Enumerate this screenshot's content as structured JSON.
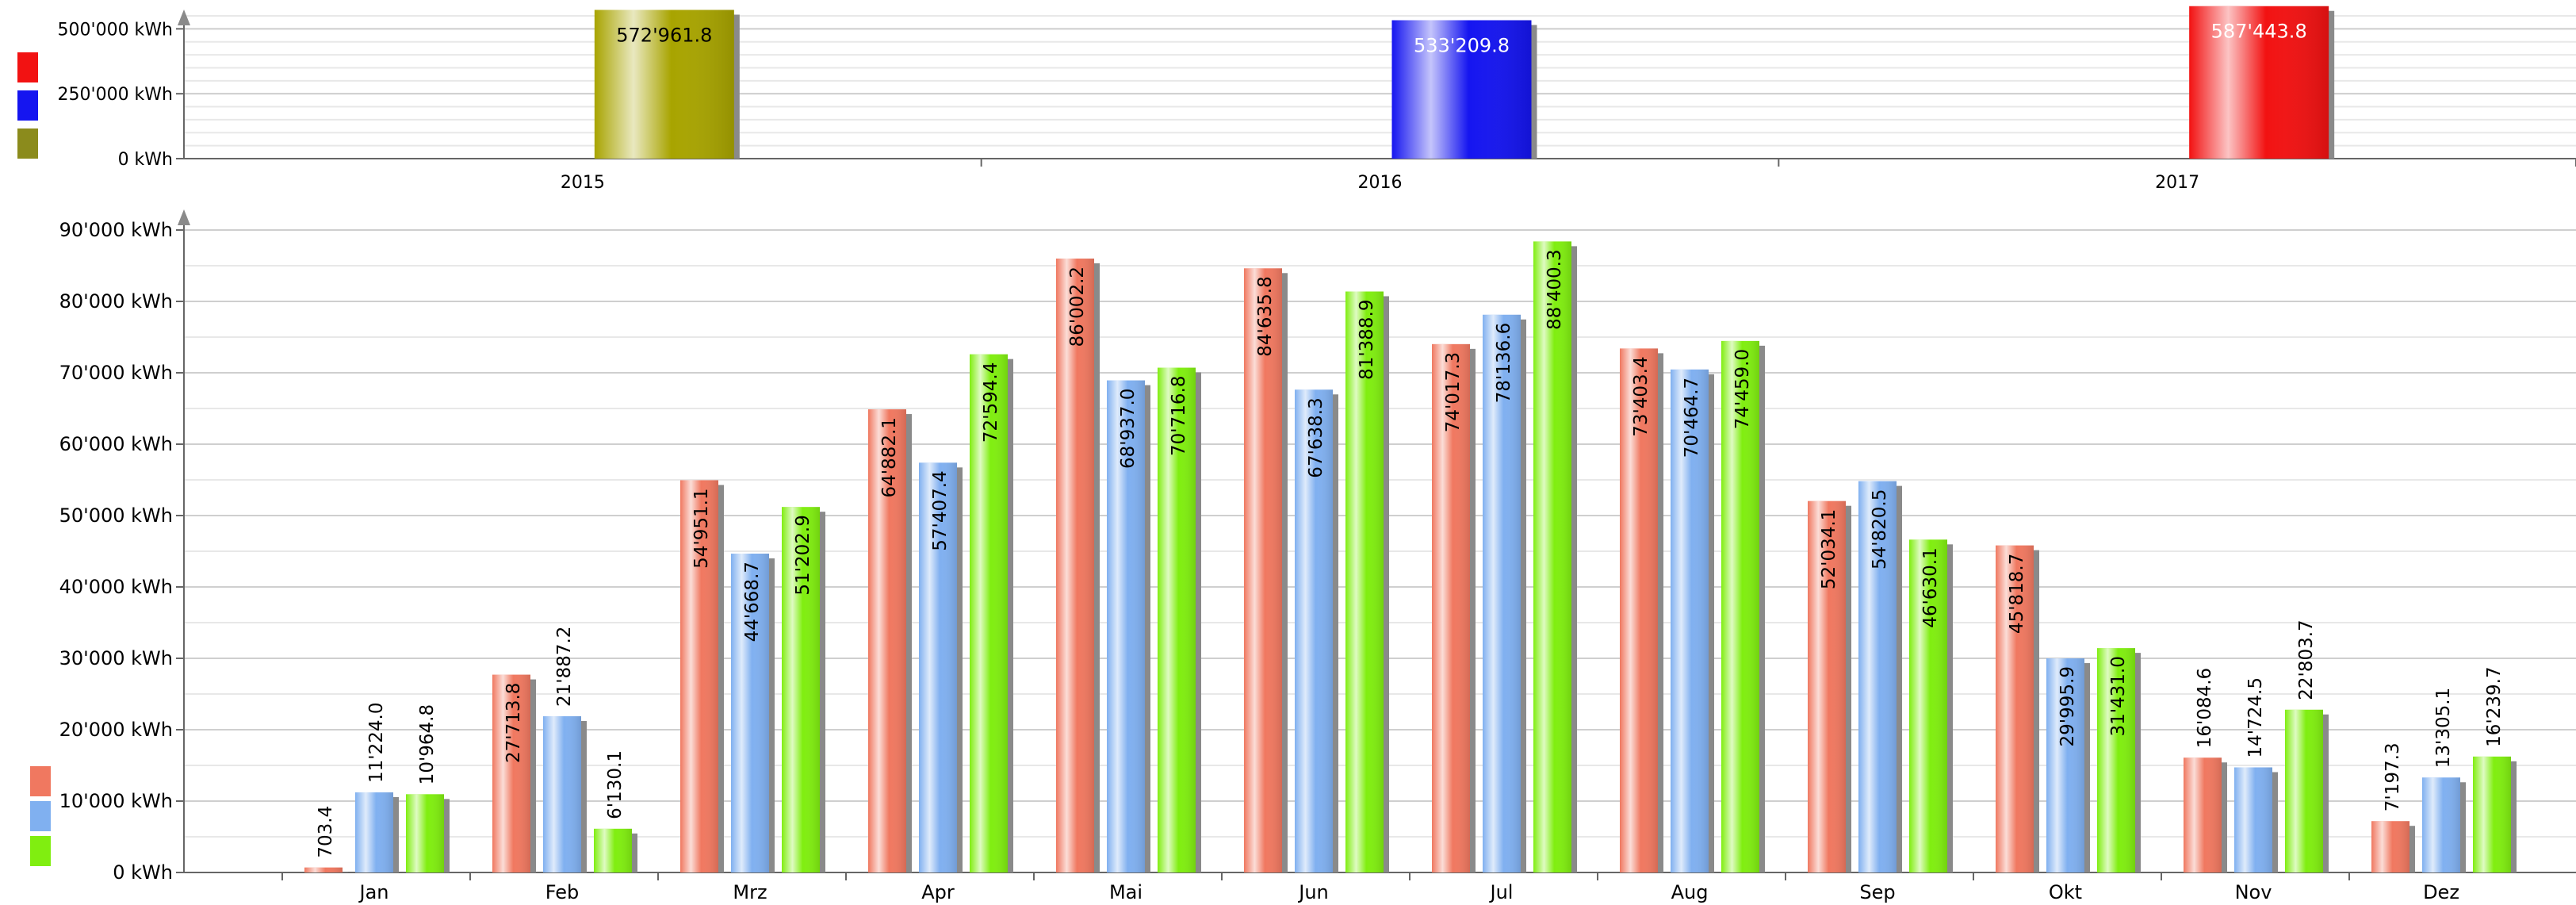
{
  "chart_data": [
    {
      "type": "bar",
      "categories": [
        "2015",
        "2016",
        "2017"
      ],
      "values": [
        572961.8,
        533209.8,
        587443.8
      ],
      "value_labels": [
        "572'961.8",
        "533'209.8",
        "587'443.8"
      ],
      "bar_colors": [
        "#a8a400",
        "#1515f0",
        "#f21212"
      ],
      "ylim": [
        0,
        550000
      ],
      "yticks": [
        0,
        250000,
        500000
      ],
      "ytick_labels": [
        "0 kWh",
        "250'000 kWh",
        "500'000 kWh"
      ],
      "legend_colors": [
        "#f21212",
        "#1515f0",
        "#8b8b1c"
      ],
      "legend_placement": "left",
      "grid": true
    },
    {
      "type": "bar",
      "categories": [
        "Jan",
        "Feb",
        "Mrz",
        "Apr",
        "Mai",
        "Jun",
        "Jul",
        "Aug",
        "Sep",
        "Okt",
        "Nov",
        "Dez"
      ],
      "series": [
        {
          "color": "#f07860",
          "values": [
            703.4,
            27713.8,
            54951.1,
            64882.1,
            86002.2,
            84635.8,
            74017.3,
            73403.4,
            52034.1,
            45818.7,
            16084.6,
            7197.3
          ],
          "labels": [
            "703.4",
            "27'713.8",
            "54'951.1",
            "64'882.1",
            "86'002.2",
            "84'635.8",
            "74'017.3",
            "73'403.4",
            "52'034.1",
            "45'818.7",
            "16'084.6",
            "7'197.3"
          ]
        },
        {
          "color": "#80b0f0",
          "values": [
            11224.0,
            21887.2,
            44668.7,
            57407.4,
            68937.0,
            67638.3,
            78136.6,
            70464.7,
            54820.5,
            29995.9,
            14724.5,
            13305.1
          ],
          "labels": [
            "11'224.0",
            "21'887.2",
            "44'668.7",
            "57'407.4",
            "68'937.0",
            "67'638.3",
            "78'136.6",
            "70'464.7",
            "54'820.5",
            "29'995.9",
            "14'724.5",
            "13'305.1"
          ]
        },
        {
          "color": "#80ee10",
          "values": [
            10964.8,
            6130.1,
            51202.9,
            72594.4,
            70716.8,
            81388.9,
            88400.3,
            74459.0,
            46630.1,
            31431.0,
            22803.7,
            16239.7
          ],
          "labels": [
            "10'964.8",
            "6'130.1",
            "51'202.9",
            "72'594.4",
            "70'716.8",
            "81'388.9",
            "88'400.3",
            "74'459.0",
            "46'630.1",
            "31'431.0",
            "22'803.7",
            "16'239.7"
          ]
        }
      ],
      "ylim": [
        0,
        92000
      ],
      "yticks": [
        0,
        10000,
        20000,
        30000,
        40000,
        50000,
        60000,
        70000,
        80000,
        90000
      ],
      "ytick_labels": [
        "0 kWh",
        "10'000 kWh",
        "20'000 kWh",
        "30'000 kWh",
        "40'000 kWh",
        "50'000 kWh",
        "60'000 kWh",
        "70'000 kWh",
        "80'000 kWh",
        "90'000 kWh"
      ],
      "legend_colors": [
        "#f07860",
        "#80b0f0",
        "#80ee10"
      ],
      "legend_placement": "left",
      "grid": true
    }
  ]
}
